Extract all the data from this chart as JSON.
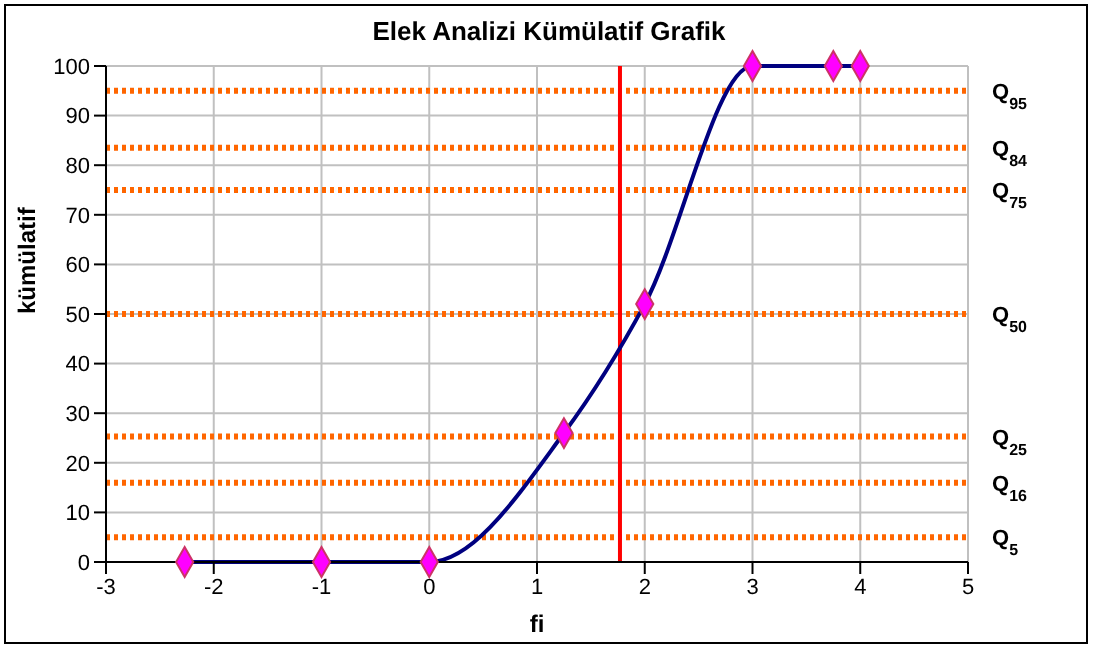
{
  "chart_data": {
    "type": "line",
    "title": "Elek Analizi Kümülatif Grafik",
    "xlabel": "fi",
    "ylabel": "kümülatif",
    "series": [
      {
        "color": "#000080",
        "marker": "none",
        "x": [
          -2.27,
          -1,
          0,
          1.25,
          2,
          3,
          3.75,
          4
        ],
        "values": [
          0,
          0,
          0,
          26,
          52,
          100,
          100,
          100
        ]
      },
      {
        "type": "scatter",
        "color": "#ff00ff",
        "marker": "diamond",
        "x": [
          -2.27,
          -1,
          0,
          1.25,
          2,
          3,
          3.75,
          4
        ],
        "values": [
          0,
          0,
          0,
          26,
          52,
          100,
          100,
          100
        ]
      }
    ],
    "xlim": [
      -3,
      5
    ],
    "xticks": [
      -3,
      -2,
      -1,
      0,
      1,
      2,
      3,
      4,
      5
    ],
    "ylim": [
      0,
      100
    ],
    "yticks": [
      0,
      10,
      20,
      30,
      40,
      50,
      60,
      70,
      80,
      90,
      100
    ],
    "grid": true,
    "ref_lines": [
      {
        "axis": "y",
        "value": 95,
        "label": "Q$_{95}$",
        "color": "#ff6600",
        "line_style": "dotted"
      },
      {
        "axis": "y",
        "value": 83.5,
        "label": "Q$_{84}$",
        "color": "#ff6600",
        "line_style": "dotted"
      },
      {
        "axis": "y",
        "value": 75,
        "label": "Q$_{75}$",
        "color": "#ff6600",
        "line_style": "dotted"
      },
      {
        "axis": "y",
        "value": 50,
        "label": "Q$_{50}$",
        "color": "#ff6600",
        "line_style": "dotted"
      },
      {
        "axis": "y",
        "value": 25.3,
        "label": "Q$_{25}$",
        "color": "#ff6600",
        "line_style": "dotted"
      },
      {
        "axis": "y",
        "value": 16,
        "label": "Q$_{16}$",
        "color": "#ff6600",
        "line_style": "dotted"
      },
      {
        "axis": "y",
        "value": 5,
        "label": "Q$_{5}$",
        "color": "#ff6600",
        "line_style": "dotted"
      },
      {
        "axis": "x",
        "value": 1.77,
        "color": "#ff0000",
        "line_style": "solid"
      }
    ]
  }
}
